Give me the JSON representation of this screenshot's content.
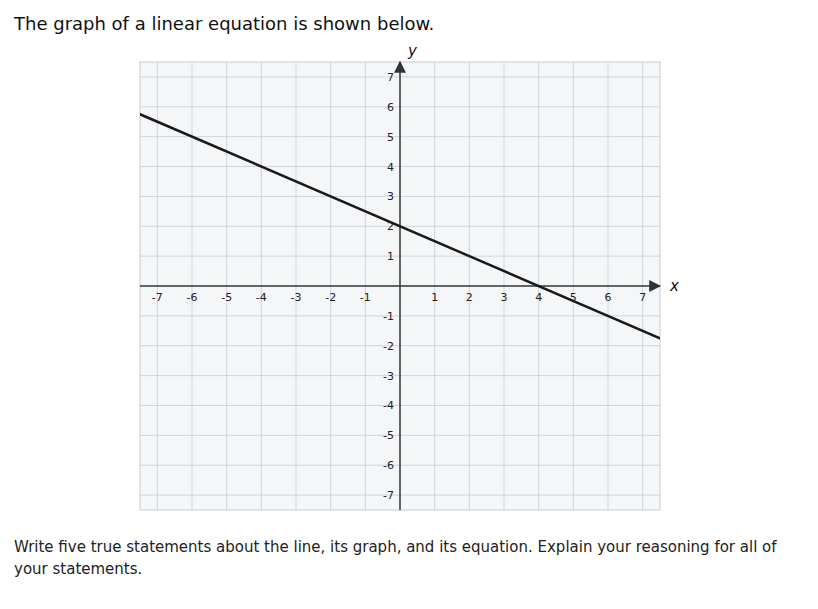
{
  "chart_data": {
    "type": "line",
    "title": "The graph of a linear equation is shown below.",
    "subtitle": "Write five true statements about the line, its graph, and its equation. Explain your reasoning for all of your statements.",
    "x_label": "x",
    "y_label": "y",
    "x": [
      -7.5,
      7.5
    ],
    "values": [
      5.75,
      -1.75
    ],
    "color": "#1a1a1a",
    "xlim": [
      -7.5,
      7.5
    ],
    "ylim": [
      -7.5,
      7.5
    ],
    "xticks": [
      -7,
      -6,
      -5,
      -4,
      -3,
      -2,
      -1,
      1,
      2,
      3,
      4,
      5,
      6,
      7
    ],
    "yticks": [
      -7,
      -6,
      -5,
      -4,
      -3,
      -2,
      -1,
      1,
      2,
      3,
      4,
      5,
      6,
      7
    ],
    "grid": true
  }
}
